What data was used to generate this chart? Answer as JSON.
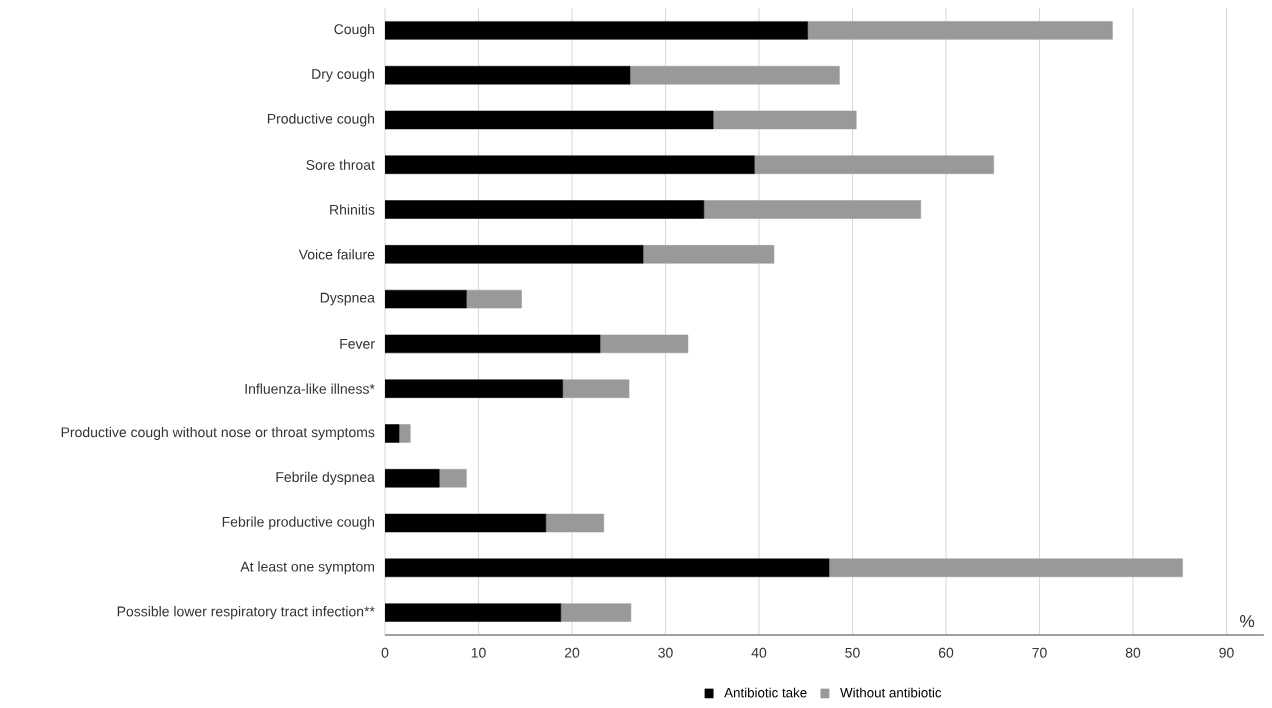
{
  "chart_data": {
    "type": "bar",
    "orientation": "horizontal",
    "stacked": true,
    "categories": [
      "Cough",
      "Dry cough",
      "Productive cough",
      "Sore throat",
      "Rhinitis",
      "Voice failure",
      "Dyspnea",
      "Fever",
      "Influenza-like illness*",
      "Productive cough without nose or throat symptoms",
      "Febrile dyspnea",
      "Febrile productive cough",
      "At least one symptom",
      "Possible lower respiratory tract infection**"
    ],
    "series": [
      {
        "name": "Antibiotic take",
        "color": "#000000",
        "values": [
          45.2,
          26.2,
          35.1,
          39.5,
          34.1,
          27.6,
          8.7,
          23.0,
          19.0,
          1.5,
          5.8,
          17.2,
          47.5,
          18.8
        ]
      },
      {
        "name": "Without antibiotic",
        "color": "#999999",
        "values": [
          32.6,
          22.4,
          15.3,
          25.6,
          23.2,
          14.0,
          5.9,
          9.4,
          7.1,
          1.2,
          2.9,
          6.2,
          37.8,
          7.5
        ]
      }
    ],
    "xlabel": "%",
    "xlim": [
      0,
      94
    ],
    "xticks": [
      0,
      10,
      20,
      30,
      40,
      50,
      60,
      70,
      80,
      90
    ],
    "grid": "x",
    "legend": "bottom"
  }
}
